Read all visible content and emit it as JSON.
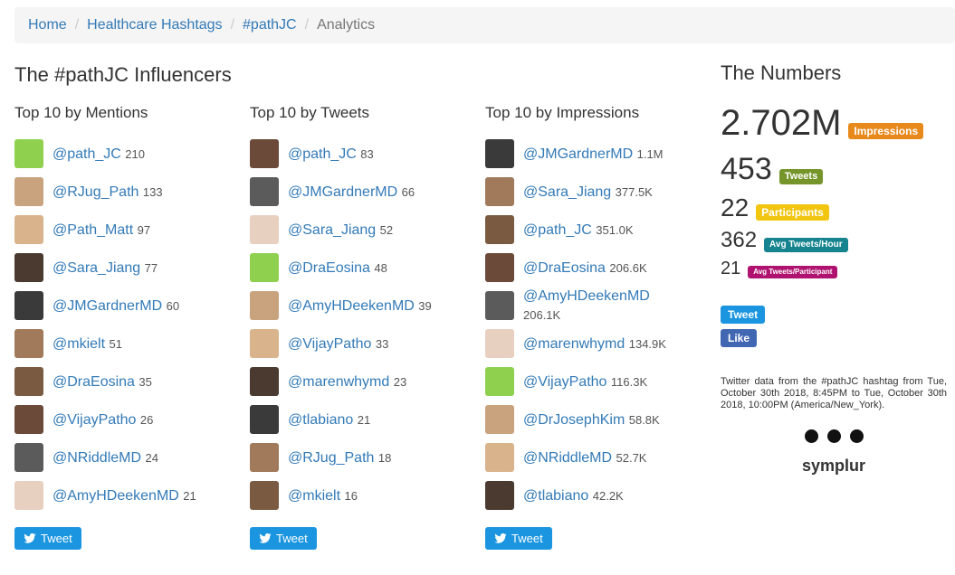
{
  "breadcrumb": [
    "Home",
    "Healthcare Hashtags",
    "#pathJC",
    "Analytics"
  ],
  "influencers": {
    "title": "The #pathJC Influencers",
    "columns": [
      {
        "title": "Top 10 by Mentions",
        "button": "Tweet",
        "rows": [
          {
            "handle": "@path_JC",
            "count": "210"
          },
          {
            "handle": "@RJug_Path",
            "count": "133"
          },
          {
            "handle": "@Path_Matt",
            "count": "97"
          },
          {
            "handle": "@Sara_Jiang",
            "count": "77"
          },
          {
            "handle": "@JMGardnerMD",
            "count": "60"
          },
          {
            "handle": "@mkielt",
            "count": "51"
          },
          {
            "handle": "@DraEosina",
            "count": "35"
          },
          {
            "handle": "@VijayPatho",
            "count": "26"
          },
          {
            "handle": "@NRiddleMD",
            "count": "24"
          },
          {
            "handle": "@AmyHDeekenMD",
            "count": "21"
          }
        ]
      },
      {
        "title": "Top 10 by Tweets",
        "button": "Tweet",
        "rows": [
          {
            "handle": "@path_JC",
            "count": "83"
          },
          {
            "handle": "@JMGardnerMD",
            "count": "66"
          },
          {
            "handle": "@Sara_Jiang",
            "count": "52"
          },
          {
            "handle": "@DraEosina",
            "count": "48"
          },
          {
            "handle": "@AmyHDeekenMD",
            "count": "39"
          },
          {
            "handle": "@VijayPatho",
            "count": "33"
          },
          {
            "handle": "@marenwhymd",
            "count": "23"
          },
          {
            "handle": "@tlabiano",
            "count": "21"
          },
          {
            "handle": "@RJug_Path",
            "count": "18"
          },
          {
            "handle": "@mkielt",
            "count": "16"
          }
        ]
      },
      {
        "title": "Top 10 by Impressions",
        "button": "Tweet",
        "rows": [
          {
            "handle": "@JMGardnerMD",
            "count": "1.1M"
          },
          {
            "handle": "@Sara_Jiang",
            "count": "377.5K"
          },
          {
            "handle": "@path_JC",
            "count": "351.0K"
          },
          {
            "handle": "@DraEosina",
            "count": "206.6K"
          },
          {
            "handle": "@AmyHDeekenMD",
            "count": "206.1K"
          },
          {
            "handle": "@marenwhymd",
            "count": "134.9K"
          },
          {
            "handle": "@VijayPatho",
            "count": "116.3K"
          },
          {
            "handle": "@DrJosephKim",
            "count": "58.8K"
          },
          {
            "handle": "@NRiddleMD",
            "count": "52.7K"
          },
          {
            "handle": "@tlabiano",
            "count": "42.2K"
          }
        ]
      }
    ]
  },
  "numbers": {
    "title": "The Numbers",
    "stats": [
      {
        "value": "2.702M",
        "label": "Impressions",
        "color": "#e8891c"
      },
      {
        "value": "453",
        "label": "Tweets",
        "color": "#75952a"
      },
      {
        "value": "22",
        "label": "Participants",
        "color": "#f2c511"
      },
      {
        "value": "362",
        "label": "Avg Tweets/Hour",
        "color": "#16848f"
      },
      {
        "value": "21",
        "label": "Avg Tweets/Participant",
        "color": "#b0136f"
      }
    ],
    "tweet_button": "Tweet",
    "like_button": "Like",
    "note_prefix": "Twitter data from the",
    "note_link": "#pathJC",
    "note_suffix": "hashtag from Tue, October 30th 2018, 8:45PM to Tue, October 30th 2018, 10:00PM (America/New_York).",
    "logo": "symplur"
  }
}
